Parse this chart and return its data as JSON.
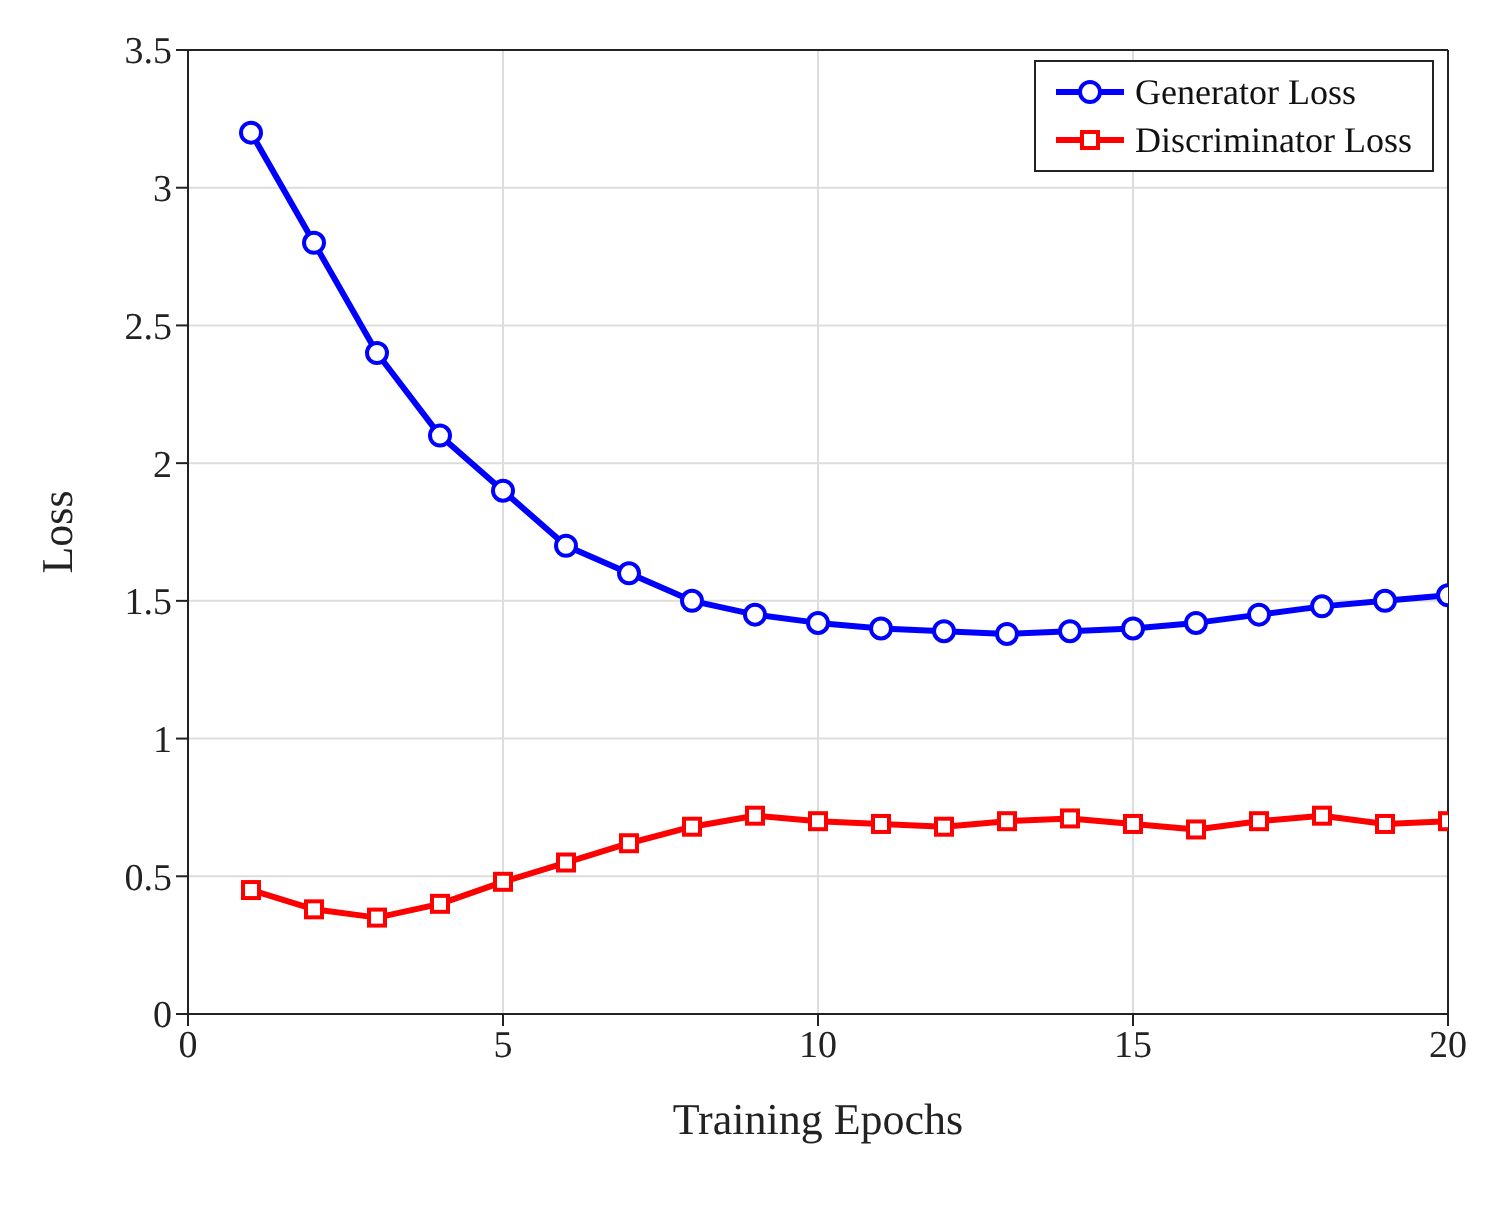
{
  "chart_data": {
    "type": "line",
    "xlabel": "Training Epochs",
    "ylabel": "Loss",
    "x": [
      1,
      2,
      3,
      4,
      5,
      6,
      7,
      8,
      9,
      10,
      11,
      12,
      13,
      14,
      15,
      16,
      17,
      18,
      19,
      20
    ],
    "series": [
      {
        "name": "Generator Loss",
        "color": "#0000ff",
        "marker": "circle",
        "values": [
          3.2,
          2.8,
          2.4,
          2.1,
          1.9,
          1.7,
          1.6,
          1.5,
          1.45,
          1.42,
          1.4,
          1.39,
          1.38,
          1.39,
          1.4,
          1.42,
          1.45,
          1.48,
          1.5,
          1.52
        ]
      },
      {
        "name": "Discriminator Loss",
        "color": "#ff0000",
        "marker": "square",
        "values": [
          0.45,
          0.38,
          0.35,
          0.4,
          0.48,
          0.55,
          0.62,
          0.68,
          0.72,
          0.7,
          0.69,
          0.68,
          0.7,
          0.71,
          0.69,
          0.67,
          0.7,
          0.72,
          0.69,
          0.7
        ]
      }
    ],
    "xlim": [
      0,
      20
    ],
    "xticks": [
      0,
      5,
      10,
      15,
      20
    ],
    "ylim": [
      0,
      3.5
    ],
    "yticks": [
      0,
      0.5,
      1,
      1.5,
      2,
      2.5,
      3,
      3.5
    ],
    "grid": true,
    "legend": "top right",
    "line_style": "solid"
  }
}
